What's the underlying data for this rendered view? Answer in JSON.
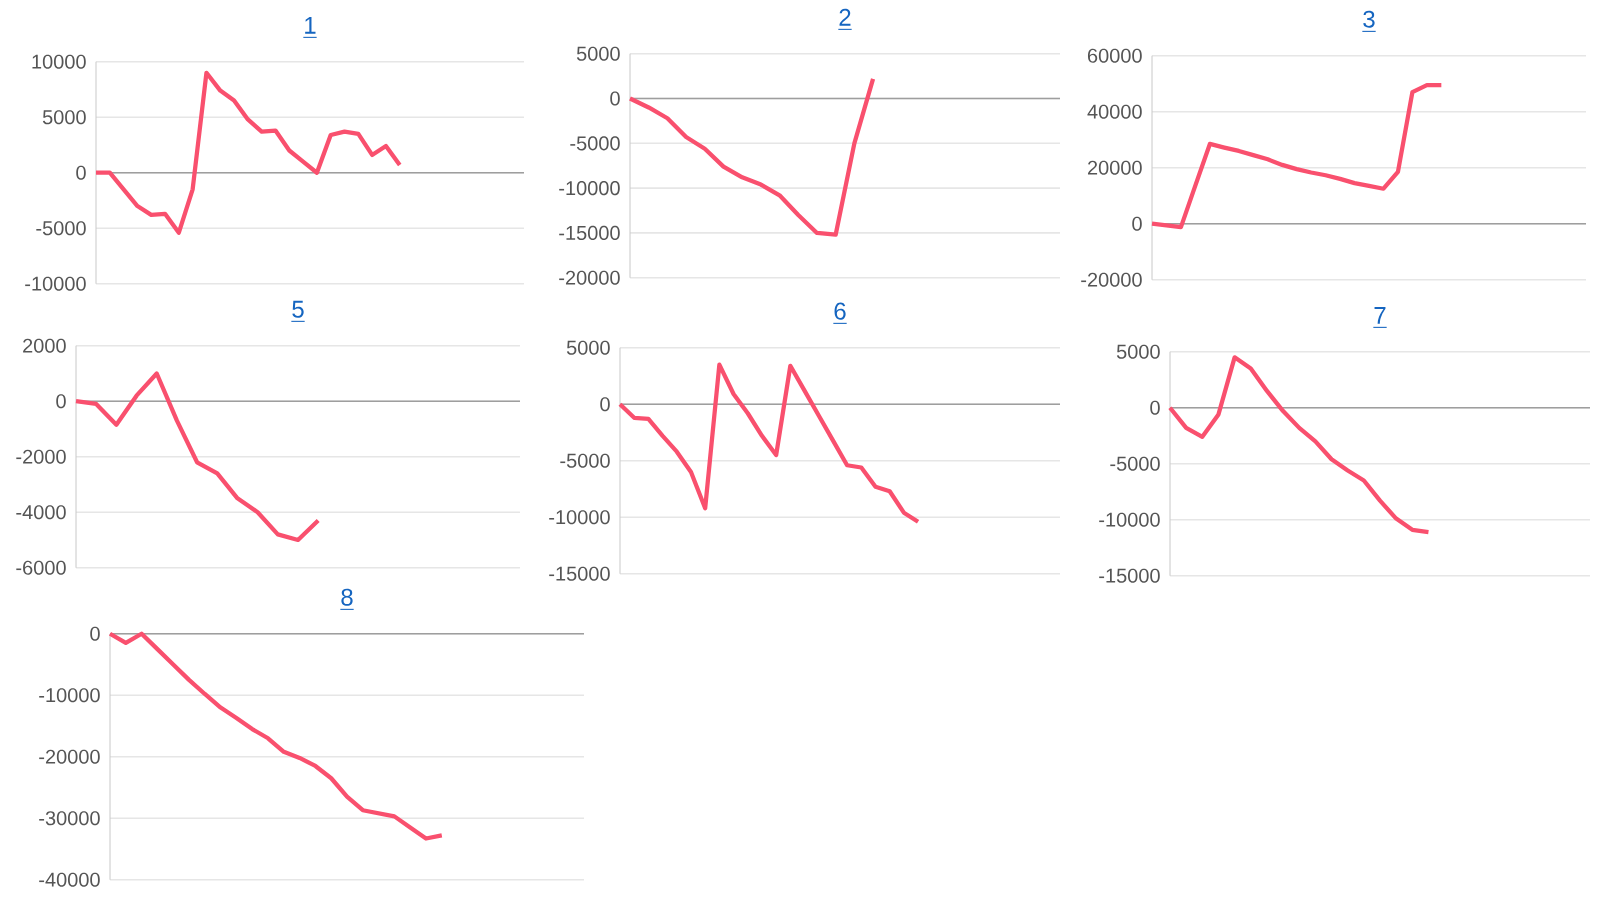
{
  "chart_data": [
    {
      "type": "line",
      "title": "1",
      "categories": [
        null,
        null,
        null,
        null,
        null,
        null,
        null,
        null,
        null,
        null,
        null,
        null,
        null,
        null,
        null,
        null,
        null,
        null,
        null,
        null,
        null,
        null,
        null,
        null,
        null,
        null,
        null,
        null,
        null,
        null,
        null,
        null
      ],
      "values": [
        0,
        0,
        -1500,
        -3000,
        -3800,
        -3700,
        -5400,
        -1500,
        9000,
        7400,
        6500,
        4800,
        3700,
        3800,
        2000,
        1000,
        0,
        3400,
        3700,
        3500,
        1600,
        2400,
        700,
        null,
        null,
        null,
        null,
        null,
        null,
        null,
        null,
        null
      ],
      "color": "#f9506e",
      "ylim": [
        -10000,
        10000
      ],
      "yticks": [
        -10000,
        -5000,
        0,
        5000,
        10000
      ],
      "grid": "y",
      "tick_labels": "y"
    },
    {
      "type": "line",
      "title": "2",
      "categories": [
        null,
        null,
        null,
        null,
        null,
        null,
        null,
        null,
        null,
        null,
        null,
        null,
        null,
        null,
        null,
        null,
        null,
        null,
        null,
        null,
        null,
        null,
        null,
        null
      ],
      "values": [
        0,
        -1000,
        -2200,
        -4300,
        -5600,
        -7600,
        -8800,
        -9600,
        -10800,
        -13000,
        -15000,
        -15200,
        -5000,
        2200,
        null,
        null,
        null,
        null,
        null,
        null,
        null,
        null,
        null,
        null
      ],
      "color": "#f9506e",
      "ylim": [
        -20000,
        5000
      ],
      "yticks": [
        -20000,
        -15000,
        -10000,
        -5000,
        0,
        5000
      ],
      "grid": "y",
      "tick_labels": "y"
    },
    {
      "type": "line",
      "title": "3",
      "categories": [
        null,
        null,
        null,
        null,
        null,
        null,
        null,
        null,
        null,
        null,
        null,
        null,
        null,
        null,
        null,
        null,
        null,
        null,
        null,
        null,
        null,
        null,
        null,
        null,
        null,
        null,
        null,
        null,
        null,
        null,
        null
      ],
      "values": [
        0,
        -600,
        -1200,
        13700,
        28500,
        27200,
        26000,
        24500,
        23000,
        21000,
        19500,
        18300,
        17300,
        16000,
        14500,
        13500,
        12500,
        18500,
        47000,
        49500,
        49500,
        null,
        null,
        null,
        null,
        null,
        null,
        null,
        null,
        null,
        null
      ],
      "color": "#f9506e",
      "ylim": [
        -20000,
        60000
      ],
      "yticks": [
        -20000,
        0,
        20000,
        40000,
        60000
      ],
      "grid": "y",
      "tick_labels": "y"
    },
    {
      "type": "line",
      "title": "5",
      "categories": [
        null,
        null,
        null,
        null,
        null,
        null,
        null,
        null,
        null,
        null,
        null,
        null,
        null,
        null,
        null,
        null,
        null,
        null,
        null,
        null,
        null,
        null,
        null
      ],
      "values": [
        0,
        -100,
        -850,
        200,
        1000,
        -700,
        -2200,
        -2600,
        -3500,
        -4000,
        -4800,
        -5000,
        -4300,
        null,
        null,
        null,
        null,
        null,
        null,
        null,
        null,
        null,
        null
      ],
      "color": "#f9506e",
      "ylim": [
        -6000,
        2000
      ],
      "yticks": [
        -6000,
        -4000,
        -2000,
        0,
        2000
      ],
      "grid": "y",
      "tick_labels": "y"
    },
    {
      "type": "line",
      "title": "6",
      "categories": [
        null,
        null,
        null,
        null,
        null,
        null,
        null,
        null,
        null,
        null,
        null,
        null,
        null,
        null,
        null,
        null,
        null,
        null,
        null,
        null,
        null,
        null,
        null,
        null,
        null,
        null,
        null,
        null,
        null,
        null,
        null,
        null
      ],
      "values": [
        0,
        -1200,
        -1300,
        -2800,
        -4200,
        -6000,
        -9200,
        3500,
        900,
        -800,
        -2800,
        -4500,
        3400,
        1200,
        -1000,
        -3200,
        -5400,
        -5600,
        -7300,
        -7700,
        -9600,
        -10400,
        null,
        null,
        null,
        null,
        null,
        null,
        null,
        null,
        null,
        null
      ],
      "color": "#f9506e",
      "ylim": [
        -15000,
        5000
      ],
      "yticks": [
        -15000,
        -10000,
        -5000,
        0,
        5000
      ],
      "grid": "y",
      "tick_labels": "y"
    },
    {
      "type": "line",
      "title": "7",
      "categories": [
        null,
        null,
        null,
        null,
        null,
        null,
        null,
        null,
        null,
        null,
        null,
        null,
        null,
        null,
        null,
        null,
        null,
        null,
        null,
        null,
        null,
        null,
        null,
        null,
        null,
        null,
        null
      ],
      "values": [
        0,
        -1800,
        -2600,
        -600,
        4500,
        3500,
        1500,
        -300,
        -1800,
        -3000,
        -4600,
        -5600,
        -6500,
        -8300,
        -9900,
        -10900,
        -11100,
        null,
        null,
        null,
        null,
        null,
        null,
        null,
        null,
        null,
        null
      ],
      "color": "#f9506e",
      "ylim": [
        -15000,
        5000
      ],
      "yticks": [
        -15000,
        -10000,
        -5000,
        0,
        5000
      ],
      "grid": "y",
      "tick_labels": "y"
    },
    {
      "type": "line",
      "title": "8",
      "categories": [
        null,
        null,
        null,
        null,
        null,
        null,
        null,
        null,
        null,
        null,
        null,
        null,
        null,
        null,
        null,
        null,
        null,
        null,
        null,
        null,
        null,
        null,
        null,
        null,
        null,
        null,
        null,
        null,
        null,
        null,
        null
      ],
      "values": [
        0,
        -1500,
        0,
        -2500,
        -5000,
        -7500,
        -9800,
        -12000,
        -13700,
        -15500,
        -17000,
        -19200,
        -20200,
        -21500,
        -23500,
        -26500,
        -28700,
        -29200,
        -29700,
        -31500,
        -33300,
        -32800,
        null,
        null,
        null,
        null,
        null,
        null,
        null,
        null,
        null
      ],
      "color": "#f9506e",
      "ylim": [
        -40000,
        0
      ],
      "yticks": [
        -40000,
        -30000,
        -20000,
        -10000,
        0
      ],
      "grid": "y",
      "tick_labels": "y"
    }
  ]
}
